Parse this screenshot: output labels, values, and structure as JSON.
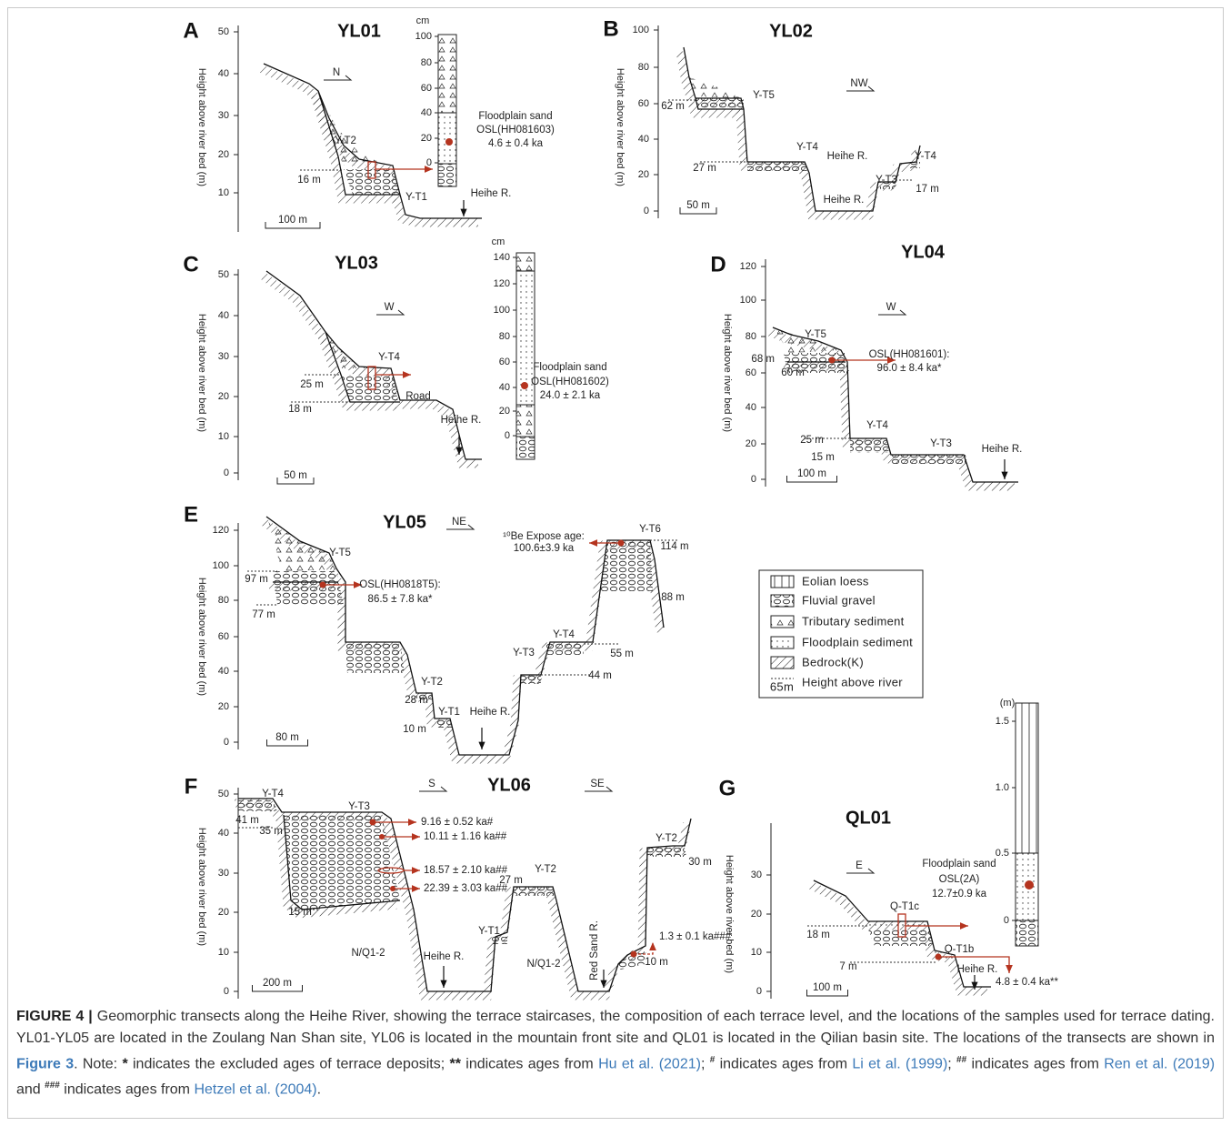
{
  "panels": [
    {
      "letter": "A",
      "title": "YL01",
      "y_axis_label": "Height above river bed (m)",
      "yticks": [
        "50",
        "40",
        "30",
        "20",
        "10"
      ],
      "directions": [
        "N"
      ],
      "scale_bar": "100 m",
      "labels": [
        "Y-T2",
        "16 m",
        "Y-T1",
        "Heihe R."
      ],
      "column": {
        "unit": "cm",
        "ticks": [
          "100",
          "80",
          "60",
          "40",
          "20",
          "0"
        ],
        "sample": [
          "Floodplain sand",
          "OSL(HH081603)",
          "4.6 ± 0.4 ka"
        ]
      }
    },
    {
      "letter": "B",
      "title": "YL02",
      "y_axis_label": "Height above river bed (m)",
      "yticks": [
        "100",
        "80",
        "60",
        "40",
        "20",
        "0"
      ],
      "directions": [
        "NW"
      ],
      "scale_bar": "50 m",
      "labels": [
        "Y-T5",
        "62 m",
        "Y-T4",
        "Heihe R.",
        "27 m",
        "Heihe R.",
        "Y-T3",
        "Y-T4",
        "17 m"
      ]
    },
    {
      "letter": "C",
      "title": "YL03",
      "y_axis_label": "Height above river bed (m)",
      "yticks": [
        "50",
        "40",
        "30",
        "20",
        "10",
        "0"
      ],
      "directions": [
        "W"
      ],
      "scale_bar": "50 m",
      "labels": [
        "Y-T4",
        "25 m",
        "Road",
        "18 m",
        "Heihe R."
      ],
      "column": {
        "unit": "cm",
        "ticks": [
          "140",
          "120",
          "100",
          "80",
          "60",
          "40",
          "20",
          "0"
        ],
        "sample": [
          "Floodplain sand",
          "OSL(HH081602)",
          "24.0 ± 2.1 ka"
        ]
      }
    },
    {
      "letter": "D",
      "title": "YL04",
      "y_axis_label": "Height above river bed (m)",
      "yticks": [
        "120",
        "100",
        "80",
        "60",
        "40",
        "20",
        "0"
      ],
      "directions": [
        "W"
      ],
      "scale_bar": "100 m",
      "labels": [
        "Y-T5",
        "68 m",
        "60 m",
        "OSL(HH081601):",
        "96.0 ± 8.4 ka*",
        "Y-T4",
        "25 m",
        "Y-T3",
        "15 m",
        "Heihe R."
      ]
    },
    {
      "letter": "E",
      "title": "YL05",
      "y_axis_label": "Height above river bed (m)",
      "yticks": [
        "120",
        "100",
        "80",
        "60",
        "40",
        "20",
        "0"
      ],
      "directions": [
        "NE"
      ],
      "scale_bar": "80 m",
      "labels": [
        "Y-T5",
        "97 m",
        "OSL(HH0818T5):",
        "86.5 ± 7.8 ka*",
        "77 m",
        "Y-T2",
        "28 m",
        "Y-T1",
        "10 m",
        "Heihe R.",
        "¹⁰Be Expose age:",
        "100.6±3.9 ka",
        "Y-T6",
        "114 m",
        "88 m",
        "Y-T3",
        "Y-T4",
        "55 m",
        "44 m"
      ]
    },
    {
      "letter": "F",
      "title": "YL06",
      "y_axis_label": "Height above river bed (m)",
      "yticks": [
        "50",
        "40",
        "30",
        "20",
        "10",
        "0"
      ],
      "directions": [
        "S",
        "SE"
      ],
      "scale_bar": "200 m",
      "labels": [
        "Y-T4",
        "41 m",
        "35 m",
        "Y-T3",
        "9.16 ± 0.52 ka#",
        "10.11 ± 1.16 ka##",
        "18.57 ± 2.10 ka##",
        "22.39 ± 3.03 ka##",
        "15 m",
        "N/Q1-2",
        "Heihe R.",
        "Y-T1",
        "27 m",
        "Y-T2",
        "N/Q1-2",
        "Red Sand R.",
        "1.3 ± 0.1 ka###",
        "10 m",
        "Y-T2",
        "30 m"
      ]
    },
    {
      "letter": "G",
      "title": "QL01",
      "y_axis_label": "Height above river bed (m)",
      "yticks": [
        "30",
        "20",
        "10",
        "0"
      ],
      "directions": [
        "E"
      ],
      "scale_bar": "100 m",
      "labels": [
        "Floodplain sand",
        "OSL(2A)",
        "12.7±0.9 ka",
        "Q-T1c",
        "18 m",
        "Q-T1b",
        "7 m",
        "Heihe R.",
        "4.8 ± 0.4 ka**"
      ],
      "column": {
        "unit": "(m)",
        "ticks": [
          "1.5",
          "1.0",
          "0.5",
          "0"
        ]
      }
    }
  ],
  "legend": {
    "items": [
      "Eolian loess",
      "Fluvial gravel",
      "Tributary sediment",
      "Floodplain sediment",
      "Bedrock(K)",
      "Height above river"
    ],
    "height_sample": "65m"
  },
  "caption": {
    "label": "FIGURE 4 |",
    "runs": [
      " Geomorphic transects along the Heihe River, showing the terrace staircases, the composition of each terrace level, and the locations of the samples used for terrace dating. YL01-YL05 are located in the Zoulang Nan Shan site, YL06 is located in the mountain front site and QL01 is located in the Qilian basin site. The locations of the transects are shown in ",
      "Figure 3",
      ". Note: ",
      "*",
      " indicates the excluded ages of terrace deposits; ",
      "**",
      " indicates ages from ",
      "Hu et al. (2021)",
      "; ",
      "#",
      " indicates ages from ",
      "Li et al. (1999)",
      "; ",
      "##",
      " indicates ages from ",
      "Ren et al. (2019)",
      " and ",
      "###",
      " indicates ages from ",
      "Hetzel et al. (2004)",
      "."
    ]
  }
}
